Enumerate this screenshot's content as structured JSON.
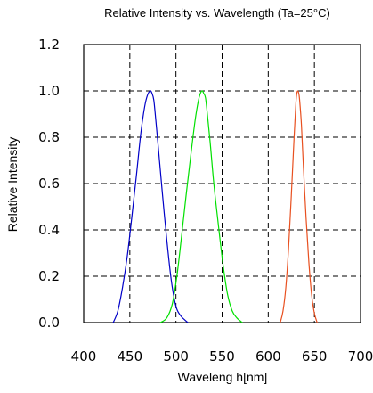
{
  "chart_data": {
    "type": "line",
    "title": "Relative Intensity vs. Wavelength (Ta=25°C)",
    "xlabel": "Waveleng h[nm]",
    "ylabel": "Relative Intensity",
    "xlim": [
      400,
      700
    ],
    "ylim": [
      0,
      1.2
    ],
    "x_ticks": [
      "400",
      "450",
      "500",
      "550",
      "600",
      "650",
      "700"
    ],
    "y_ticks": [
      "0.0",
      "0.2",
      "0.4",
      "0.6",
      "0.8",
      "1.0",
      "1.2"
    ],
    "grid": true,
    "series": [
      {
        "color": "#0000c8",
        "x": [
          432,
          437,
          442,
          447,
          452,
          457,
          462,
          466,
          469,
          472,
          474,
          476,
          478,
          481,
          485,
          490,
          495,
          500,
          505,
          510,
          513
        ],
        "y": [
          0,
          0.05,
          0.15,
          0.28,
          0.45,
          0.63,
          0.82,
          0.93,
          0.98,
          1.0,
          0.99,
          0.96,
          0.88,
          0.75,
          0.57,
          0.36,
          0.18,
          0.07,
          0.03,
          0.01,
          0
        ]
      },
      {
        "color": "#00e000",
        "x": [
          483,
          490,
          496,
          501,
          506,
          511,
          516,
          521,
          525,
          528,
          530,
          532,
          534,
          537,
          541,
          546,
          551,
          556,
          561,
          566,
          572
        ],
        "y": [
          0,
          0.02,
          0.08,
          0.2,
          0.37,
          0.55,
          0.72,
          0.88,
          0.97,
          1.0,
          0.99,
          0.97,
          0.9,
          0.78,
          0.6,
          0.42,
          0.25,
          0.12,
          0.05,
          0.02,
          0
        ]
      },
      {
        "color": "#e85020",
        "x": [
          613,
          616,
          619,
          622,
          625,
          628,
          630,
          631,
          632,
          633,
          634,
          636,
          638,
          641,
          644,
          647,
          650,
          653
        ],
        "y": [
          0,
          0.05,
          0.15,
          0.32,
          0.55,
          0.8,
          0.95,
          0.99,
          1.0,
          0.99,
          0.96,
          0.85,
          0.68,
          0.45,
          0.26,
          0.12,
          0.04,
          0
        ]
      }
    ]
  }
}
